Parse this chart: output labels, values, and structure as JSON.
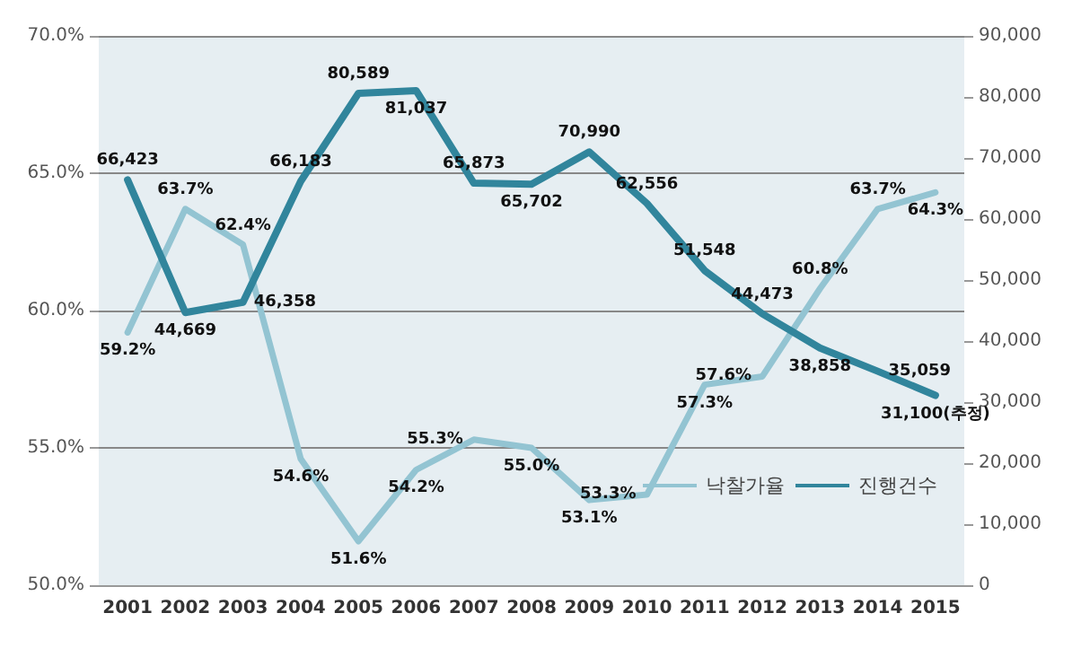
{
  "chart_data": {
    "type": "line",
    "categories": [
      "2001",
      "2002",
      "2003",
      "2004",
      "2005",
      "2006",
      "2007",
      "2008",
      "2009",
      "2010",
      "2011",
      "2012",
      "2013",
      "2014",
      "2015"
    ],
    "series": [
      {
        "name": "낙찰가율",
        "color": "#93c4d2",
        "values": [
          59.2,
          63.7,
          62.4,
          54.6,
          51.6,
          54.2,
          55.3,
          55.0,
          53.1,
          53.3,
          57.3,
          57.6,
          60.8,
          63.7,
          64.3
        ],
        "value_labels": [
          "59.2%",
          "63.7%",
          "62.4%",
          "54.6%",
          "51.6%",
          "54.2%",
          "55.3%",
          "55.0%",
          "53.1%",
          "53.3%",
          "57.3%",
          "57.6%",
          "60.8%",
          "63.7%",
          "64.3%"
        ]
      },
      {
        "name": "진행건수",
        "color": "#31859c",
        "axis": "y2",
        "values": [
          66423,
          44669,
          46358,
          66183,
          80589,
          81037,
          65873,
          65702,
          70990,
          62556,
          51548,
          44473,
          38858,
          35059,
          31100
        ],
        "value_labels": [
          "66,423",
          "44,669",
          "46,358",
          "66,183",
          "80,589",
          "81,037",
          "65,873",
          "65,702",
          "70,990",
          "62,556",
          "51,548",
          "44,473",
          "38,858",
          "35,059",
          "31,100(추정)"
        ]
      }
    ],
    "ylim": [
      50,
      70
    ],
    "yticks": [
      {
        "value": 50,
        "label": "50.0%"
      },
      {
        "value": 55,
        "label": "55.0%"
      },
      {
        "value": 60,
        "label": "60.0%"
      },
      {
        "value": 65,
        "label": "65.0%"
      },
      {
        "value": 70,
        "label": "70.0%"
      }
    ],
    "y2lim": [
      0,
      90000
    ],
    "y2ticks": [
      0,
      {
        "value": 10000,
        "label": "10,000"
      },
      {
        "value": 20000,
        "label": "20,000"
      },
      {
        "value": 30000,
        "label": "30,000"
      },
      {
        "value": 40000,
        "label": "40,000"
      },
      {
        "value": 50000,
        "label": "50,000"
      },
      {
        "value": 60000,
        "label": "60,000"
      },
      {
        "value": 70000,
        "label": "70,000"
      },
      {
        "value": 80000,
        "label": "80,000"
      },
      {
        "value": 90000,
        "label": "90,000"
      }
    ],
    "grid": "y",
    "legend": "bottom right",
    "marker": "none",
    "line_style": "solid"
  }
}
